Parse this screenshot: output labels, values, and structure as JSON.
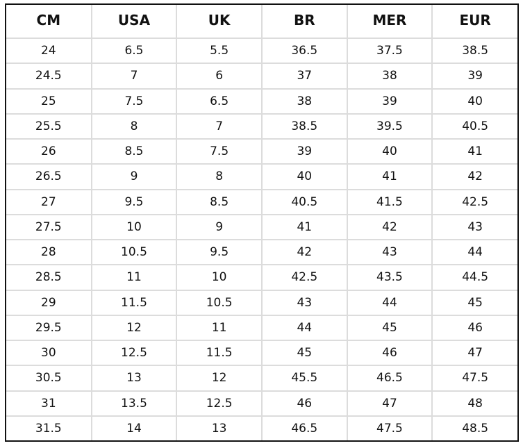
{
  "table": {
    "header": [
      "CM",
      "USA",
      "UK",
      "BR",
      "MER",
      "EUR"
    ],
    "rows": [
      [
        "24",
        "6.5",
        "5.5",
        "36.5",
        "37.5",
        "38.5"
      ],
      [
        "24.5",
        "7",
        "6",
        "37",
        "38",
        "39"
      ],
      [
        "25",
        "7.5",
        "6.5",
        "38",
        "39",
        "40"
      ],
      [
        "25.5",
        "8",
        "7",
        "38.5",
        "39.5",
        "40.5"
      ],
      [
        "26",
        "8.5",
        "7.5",
        "39",
        "40",
        "41"
      ],
      [
        "26.5",
        "9",
        "8",
        "40",
        "41",
        "42"
      ],
      [
        "27",
        "9.5",
        "8.5",
        "40.5",
        "41.5",
        "42.5"
      ],
      [
        "27.5",
        "10",
        "9",
        "41",
        "42",
        "43"
      ],
      [
        "28",
        "10.5",
        "9.5",
        "42",
        "43",
        "44"
      ],
      [
        "28.5",
        "11",
        "10",
        "42.5",
        "43.5",
        "44.5"
      ],
      [
        "29",
        "11.5",
        "10.5",
        "43",
        "44",
        "45"
      ],
      [
        "29.5",
        "12",
        "11",
        "44",
        "45",
        "46"
      ],
      [
        "30",
        "12.5",
        "11.5",
        "45",
        "46",
        "47"
      ],
      [
        "30.5",
        "13",
        "12",
        "45.5",
        "46.5",
        "47.5"
      ],
      [
        "31",
        "13.5",
        "12.5",
        "46",
        "47",
        "48"
      ],
      [
        "31.5",
        "14",
        "13",
        "46.5",
        "47.5",
        "48.5"
      ]
    ]
  }
}
